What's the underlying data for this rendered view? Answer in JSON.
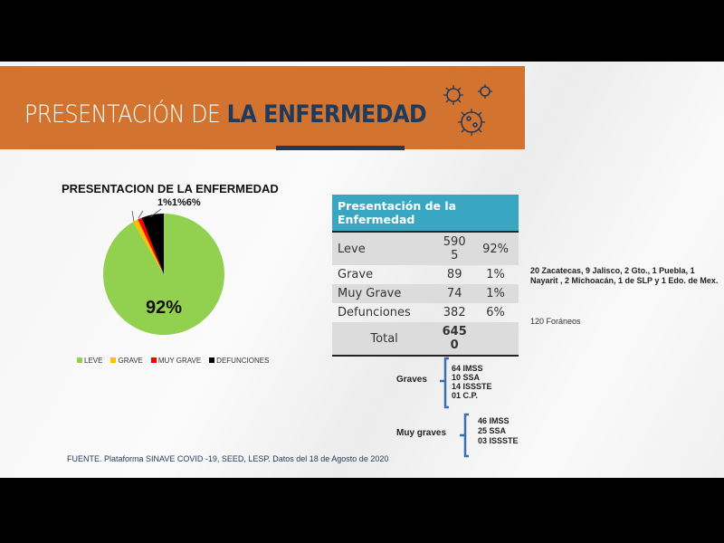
{
  "header": {
    "title_light": "PRESENTACIÓN DE ",
    "title_bold": "LA ENFERMEDAD"
  },
  "chart_data": {
    "type": "pie",
    "title": "PRESENTACION DE LA ENFERMEDAD",
    "categories": [
      "LEVE",
      "GRAVE",
      "MUY GRAVE",
      "DEFUNCIONES"
    ],
    "values": [
      5905,
      89,
      74,
      382
    ],
    "data_labels": [
      "92%",
      "1%",
      "1%",
      "6%"
    ],
    "top_labels": "1%1%6%",
    "colors": [
      "#92d050",
      "#ffc000",
      "#ff0000",
      "#000000"
    ],
    "legend_position": "bottom"
  },
  "table": {
    "header": "Presentación de la Enfermedad",
    "rows": [
      {
        "label": "Leve",
        "count": "5905",
        "pct": "92%"
      },
      {
        "label": "Grave",
        "count": "89",
        "pct": "1%"
      },
      {
        "label": "Muy Grave",
        "count": "74",
        "pct": "1%"
      },
      {
        "label": "Defunciones",
        "count": "382",
        "pct": "6%"
      }
    ],
    "total_label": "Total",
    "total": "6450"
  },
  "notes": {
    "states": "20 Zacatecas, 9 Jalisco, 2 Gto., 1 Puebla, 1 Nayarit , 2 Michoacán, 1 de SLP y 1 Edo. de Mex.",
    "foraneos": "120 Foráneos"
  },
  "graves": {
    "label": "Graves",
    "items": [
      "64 IMSS",
      "10 SSA",
      "14 ISSSTE",
      "01 C.P."
    ]
  },
  "muy_graves": {
    "label": "Muy graves",
    "items": [
      "46 IMSS",
      "25 SSA",
      "03 ISSSTE"
    ]
  },
  "fuente": "FUENTE. Plataforma SINAVE COVID -19, SEED, LESP. Datos del 18 de Agosto de 2020"
}
